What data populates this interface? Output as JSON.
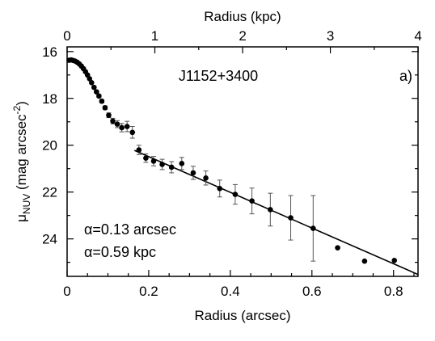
{
  "chart_data": {
    "type": "scatter",
    "label_id": "J1152+3400",
    "panel_label": "a)",
    "xlabel": "Radius (arcsec)",
    "x2label": "Radius (kpc)",
    "ylabel_main": "μ",
    "ylabel_sub": "NUV",
    "ylabel_rest": " (mag arcsec",
    "ylabel_sup": "-2",
    "ylabel_end": ")",
    "xlim": [
      0,
      0.86
    ],
    "ylim": [
      25.6,
      15.8
    ],
    "x2_ratio_kpc_per_arcsec": 4.65,
    "x_ticks": [
      0,
      0.2,
      0.4,
      0.6,
      0.8
    ],
    "x_tick_labels": [
      "0",
      "0.2",
      "0.4",
      "0.6",
      "0.8"
    ],
    "x2_ticks": [
      0,
      1,
      2,
      3,
      4
    ],
    "x2_tick_labels": [
      "0",
      "1",
      "2",
      "3",
      "4"
    ],
    "y_ticks": [
      16,
      18,
      20,
      22,
      24
    ],
    "y_tick_labels": [
      "16",
      "18",
      "20",
      "22",
      "24"
    ],
    "annotations": [
      "α=0.13 arcsec",
      "α=0.59 kpc"
    ],
    "points": [
      {
        "x": 0.005,
        "y": 16.37,
        "err": 0
      },
      {
        "x": 0.01,
        "y": 16.36,
        "err": 0
      },
      {
        "x": 0.015,
        "y": 16.38,
        "err": 0
      },
      {
        "x": 0.02,
        "y": 16.41,
        "err": 0
      },
      {
        "x": 0.025,
        "y": 16.46,
        "err": 0
      },
      {
        "x": 0.03,
        "y": 16.53,
        "err": 0
      },
      {
        "x": 0.035,
        "y": 16.62,
        "err": 0
      },
      {
        "x": 0.04,
        "y": 16.73,
        "err": 0
      },
      {
        "x": 0.045,
        "y": 16.86,
        "err": 0
      },
      {
        "x": 0.05,
        "y": 17.0,
        "err": 0
      },
      {
        "x": 0.055,
        "y": 17.16,
        "err": 0
      },
      {
        "x": 0.06,
        "y": 17.33,
        "err": 0
      },
      {
        "x": 0.066,
        "y": 17.53,
        "err": 0
      },
      {
        "x": 0.072,
        "y": 17.72,
        "err": 0.05
      },
      {
        "x": 0.078,
        "y": 17.9,
        "err": 0.06
      },
      {
        "x": 0.085,
        "y": 18.12,
        "err": 0.07
      },
      {
        "x": 0.093,
        "y": 18.4,
        "err": 0.08
      },
      {
        "x": 0.102,
        "y": 18.72,
        "err": 0.1
      },
      {
        "x": 0.112,
        "y": 18.97,
        "err": 0.12
      },
      {
        "x": 0.123,
        "y": 19.1,
        "err": 0.15
      },
      {
        "x": 0.134,
        "y": 19.25,
        "err": 0.18
      },
      {
        "x": 0.147,
        "y": 19.2,
        "err": 0.22
      },
      {
        "x": 0.16,
        "y": 19.45,
        "err": 0.25
      },
      {
        "x": 0.176,
        "y": 20.2,
        "err": 0.2
      },
      {
        "x": 0.193,
        "y": 20.55,
        "err": 0.18
      },
      {
        "x": 0.212,
        "y": 20.68,
        "err": 0.2
      },
      {
        "x": 0.233,
        "y": 20.82,
        "err": 0.22
      },
      {
        "x": 0.256,
        "y": 20.94,
        "err": 0.24
      },
      {
        "x": 0.281,
        "y": 20.78,
        "err": 0.26
      },
      {
        "x": 0.309,
        "y": 21.18,
        "err": 0.28
      },
      {
        "x": 0.34,
        "y": 21.4,
        "err": 0.3
      },
      {
        "x": 0.374,
        "y": 21.85,
        "err": 0.36
      },
      {
        "x": 0.412,
        "y": 22.1,
        "err": 0.42
      },
      {
        "x": 0.453,
        "y": 22.38,
        "err": 0.55
      },
      {
        "x": 0.498,
        "y": 22.75,
        "err": 0.7
      },
      {
        "x": 0.548,
        "y": 23.1,
        "err": 0.95
      },
      {
        "x": 0.603,
        "y": 23.55,
        "err": 1.4
      },
      {
        "x": 0.663,
        "y": 24.38,
        "err": 0
      },
      {
        "x": 0.729,
        "y": 24.95,
        "err": 0
      },
      {
        "x": 0.802,
        "y": 24.92,
        "err": 0
      }
    ],
    "fit_line": {
      "x": [
        0.165,
        0.86
      ],
      "y": [
        20.22,
        25.52
      ]
    }
  }
}
